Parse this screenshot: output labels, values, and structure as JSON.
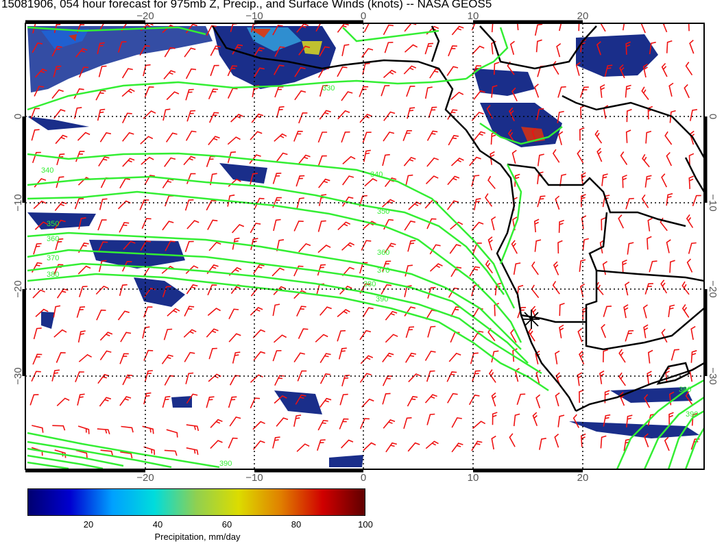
{
  "title": "15081906, 054 hour forecast for 975mb Z, Precip., and Surface Winds (knots) -- NASA GEOS5",
  "map": {
    "lon_ticks": [
      "−20",
      "−10",
      "0",
      "10",
      "20"
    ],
    "lat_ticks": [
      "0",
      "−10",
      "−20",
      "−30"
    ],
    "lat_ticks_right": [
      "0",
      "−10",
      "−20",
      "−30"
    ],
    "contour_labels": [
      "330",
      "340",
      "340",
      "350",
      "360",
      "370",
      "380",
      "390",
      "350",
      "360",
      "370",
      "380",
      "390",
      "380",
      "390"
    ],
    "marker": "asterisk",
    "colors": {
      "contour": "#33ee33",
      "wind_barb": "#ee1111",
      "coastline": "#000000",
      "grid": "#000000"
    }
  },
  "colorbar": {
    "ticks": [
      "20",
      "40",
      "60",
      "80",
      "100"
    ],
    "label": "Precipitation, mm/day",
    "colors": [
      "#000070",
      "#0000d0",
      "#00a0ff",
      "#00dcdc",
      "#90d050",
      "#dcdc00",
      "#e08000",
      "#d00000",
      "#600000"
    ]
  }
}
